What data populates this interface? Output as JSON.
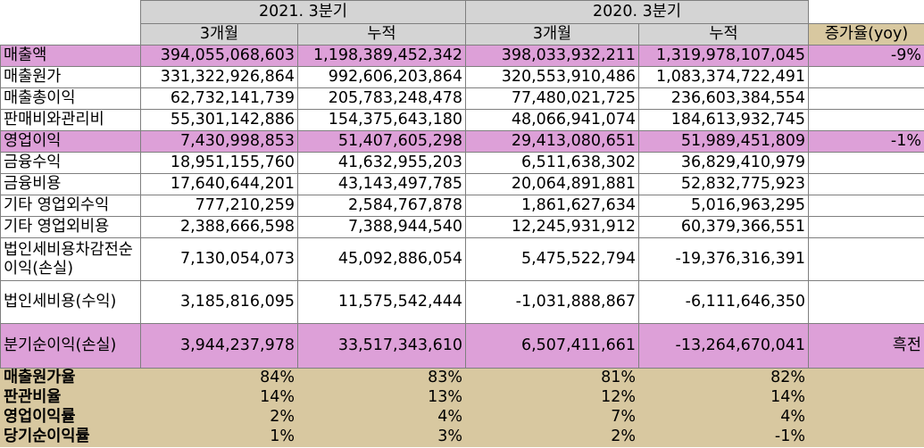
{
  "header": {
    "period_2021": "2021. 3분기",
    "period_2020": "2020. 3분기",
    "col_3m": "3개월",
    "col_cum": "누적",
    "yoy": "증가율(yoy)"
  },
  "rows": [
    {
      "label": "매출액",
      "v": [
        "394,055,068,603",
        "1,198,389,452,342",
        "398,033,932,211",
        "1,319,978,107,045"
      ],
      "yoy": "-9%",
      "hl": true
    },
    {
      "label": "매출원가",
      "v": [
        "331,322,926,864",
        "992,606,203,864",
        "320,553,910,486",
        "1,083,374,722,491"
      ],
      "yoy": "",
      "hl": false
    },
    {
      "label": "매출총이익",
      "v": [
        "62,732,141,739",
        "205,783,248,478",
        "77,480,021,725",
        "236,603,384,554"
      ],
      "yoy": "",
      "hl": false
    },
    {
      "label": "판매비와관리비",
      "v": [
        "55,301,142,886",
        "154,375,643,180",
        "48,066,941,074",
        "184,613,932,745"
      ],
      "yoy": "",
      "hl": false
    },
    {
      "label": "영업이익",
      "v": [
        "7,430,998,853",
        "51,407,605,298",
        "29,413,080,651",
        "51,989,451,809"
      ],
      "yoy": "-1%",
      "hl": true
    },
    {
      "label": "금융수익",
      "v": [
        "18,951,155,760",
        "41,632,955,203",
        "6,511,638,302",
        "36,829,410,979"
      ],
      "yoy": "",
      "hl": false
    },
    {
      "label": "금융비용",
      "v": [
        "17,640,644,201",
        "43,143,497,785",
        "20,064,891,881",
        "52,832,775,923"
      ],
      "yoy": "",
      "hl": false
    },
    {
      "label": "기타 영업외수익",
      "v": [
        "777,210,259",
        "2,584,767,878",
        "1,861,627,634",
        "5,016,963,295"
      ],
      "yoy": "",
      "hl": false
    },
    {
      "label": "기타 영업외비용",
      "v": [
        "2,388,666,598",
        "7,388,944,540",
        "12,245,931,912",
        "60,379,366,551"
      ],
      "yoy": "",
      "hl": false
    },
    {
      "label": "법인세비용차감전순이익(손실)",
      "v": [
        "7,130,054,073",
        "45,092,886,054",
        "5,475,522,794",
        "-19,376,316,391"
      ],
      "yoy": "",
      "hl": false
    },
    {
      "label": "법인세비용(수익)",
      "v": [
        "3,185,816,095",
        "11,575,542,444",
        "-1,031,888,867",
        "-6,111,646,350"
      ],
      "yoy": "",
      "hl": false
    },
    {
      "label": "분기순이익(손실)",
      "v": [
        "3,944,237,978",
        "33,517,343,610",
        "6,507,411,661",
        "-13,264,670,041"
      ],
      "yoy": "흑전",
      "hl": true
    }
  ],
  "ratios": [
    {
      "label": "매출원가율",
      "v": [
        "84%",
        "83%",
        "81%",
        "82%"
      ]
    },
    {
      "label": "판관비율",
      "v": [
        "14%",
        "13%",
        "12%",
        "14%"
      ]
    },
    {
      "label": "영업이익률",
      "v": [
        "2%",
        "4%",
        "7%",
        "4%"
      ]
    },
    {
      "label": "당기순이익률",
      "v": [
        "1%",
        "3%",
        "2%",
        "-1%"
      ]
    }
  ]
}
